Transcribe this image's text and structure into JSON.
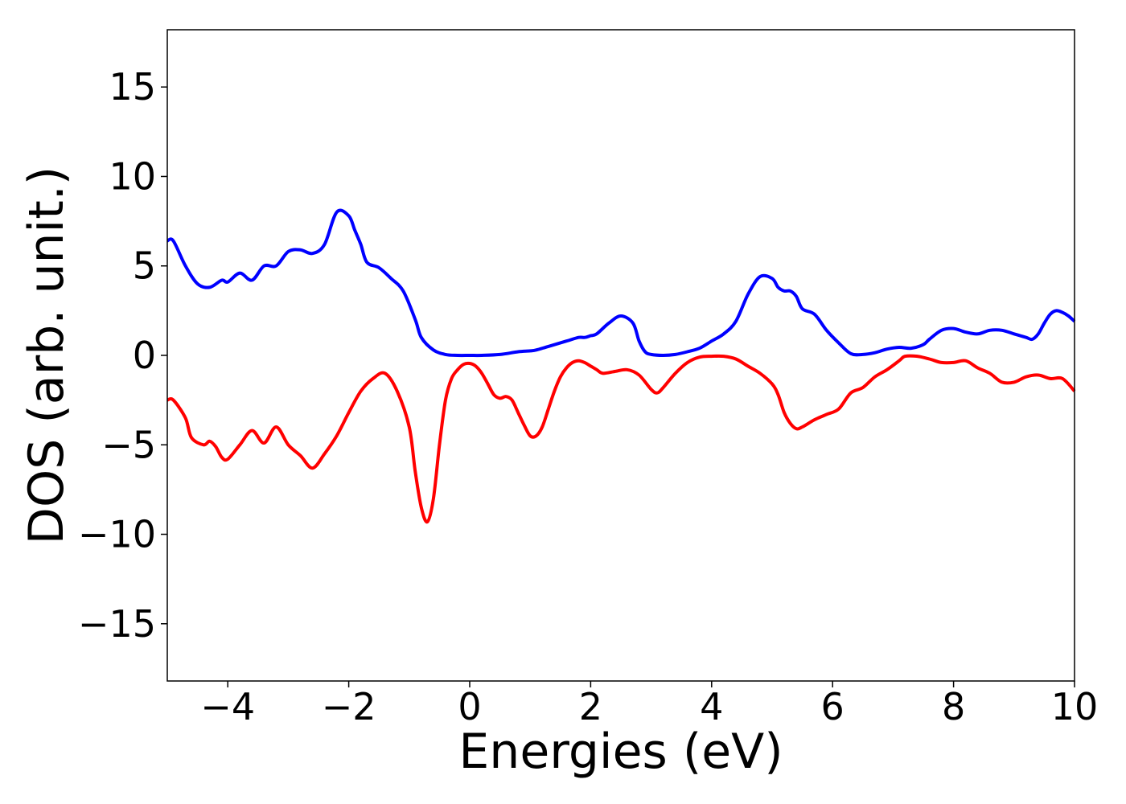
{
  "chart_data": {
    "type": "line",
    "title": "",
    "xlabel": "Energies (eV)",
    "ylabel": "DOS (arb. unit.)",
    "xlim": [
      -5,
      10
    ],
    "ylim": [
      -18.2,
      18.2
    ],
    "xticks": [
      -4,
      -2,
      0,
      2,
      4,
      6,
      8,
      10
    ],
    "xtick_labels": [
      "−4",
      "−2",
      "0",
      "2",
      "4",
      "6",
      "8",
      "10"
    ],
    "yticks": [
      15,
      10,
      5,
      0,
      -5,
      -10,
      -15
    ],
    "ytick_labels": [
      "15",
      "10",
      "5",
      "0",
      "−5",
      "−10",
      "−15"
    ],
    "grid": false,
    "legend": "none",
    "series": [
      {
        "color": "#0000ff",
        "x": [
          -5.0,
          -4.9,
          -4.7,
          -4.5,
          -4.3,
          -4.1,
          -4.0,
          -3.8,
          -3.6,
          -3.4,
          -3.2,
          -3.0,
          -2.8,
          -2.6,
          -2.4,
          -2.2,
          -2.0,
          -1.9,
          -1.8,
          -1.7,
          -1.5,
          -1.3,
          -1.1,
          -0.9,
          -0.8,
          -0.6,
          -0.4,
          -0.2,
          0.0,
          0.2,
          0.5,
          0.8,
          1.0,
          1.1,
          1.3,
          1.6,
          1.8,
          1.9,
          2.0,
          2.1,
          2.3,
          2.5,
          2.7,
          2.8,
          2.9,
          3.0,
          3.2,
          3.4,
          3.6,
          3.8,
          4.0,
          4.2,
          4.4,
          4.6,
          4.8,
          5.0,
          5.1,
          5.2,
          5.3,
          5.4,
          5.5,
          5.7,
          5.9,
          6.1,
          6.3,
          6.5,
          6.7,
          6.9,
          7.1,
          7.3,
          7.5,
          7.6,
          7.8,
          8.0,
          8.2,
          8.4,
          8.6,
          8.8,
          9.0,
          9.2,
          9.3,
          9.4,
          9.5,
          9.6,
          9.7,
          9.8,
          9.9,
          10.0
        ],
        "y": [
          6.4,
          6.4,
          5.0,
          4.0,
          3.8,
          4.2,
          4.1,
          4.6,
          4.2,
          5.0,
          5.0,
          5.8,
          5.9,
          5.7,
          6.2,
          8.0,
          7.8,
          7.0,
          6.2,
          5.2,
          4.9,
          4.3,
          3.6,
          2.0,
          1.0,
          0.3,
          0.05,
          0.0,
          0.0,
          0.0,
          0.05,
          0.2,
          0.25,
          0.3,
          0.5,
          0.8,
          1.0,
          1.0,
          1.1,
          1.2,
          1.8,
          2.2,
          1.8,
          0.8,
          0.2,
          0.05,
          0.0,
          0.05,
          0.2,
          0.4,
          0.8,
          1.2,
          1.9,
          3.4,
          4.4,
          4.3,
          3.8,
          3.6,
          3.6,
          3.3,
          2.6,
          2.3,
          1.4,
          0.7,
          0.1,
          0.05,
          0.15,
          0.35,
          0.45,
          0.4,
          0.6,
          0.9,
          1.4,
          1.5,
          1.3,
          1.2,
          1.4,
          1.4,
          1.2,
          1.0,
          0.9,
          1.2,
          1.8,
          2.3,
          2.5,
          2.4,
          2.2,
          1.9
        ]
      },
      {
        "color": "#ff0000",
        "x": [
          -5.0,
          -4.9,
          -4.7,
          -4.6,
          -4.4,
          -4.3,
          -4.2,
          -4.1,
          -4.0,
          -3.8,
          -3.6,
          -3.4,
          -3.2,
          -3.0,
          -2.8,
          -2.6,
          -2.4,
          -2.2,
          -2.0,
          -1.8,
          -1.6,
          -1.4,
          -1.2,
          -1.0,
          -0.9,
          -0.8,
          -0.7,
          -0.6,
          -0.5,
          -0.4,
          -0.3,
          -0.2,
          -0.1,
          0.0,
          0.1,
          0.2,
          0.3,
          0.4,
          0.5,
          0.6,
          0.7,
          0.8,
          0.9,
          1.0,
          1.1,
          1.2,
          1.3,
          1.4,
          1.5,
          1.6,
          1.7,
          1.8,
          1.9,
          2.0,
          2.1,
          2.2,
          2.4,
          2.6,
          2.8,
          3.0,
          3.1,
          3.2,
          3.4,
          3.6,
          3.8,
          4.0,
          4.2,
          4.4,
          4.6,
          4.8,
          5.0,
          5.1,
          5.2,
          5.3,
          5.4,
          5.5,
          5.7,
          5.9,
          6.1,
          6.3,
          6.5,
          6.7,
          6.9,
          7.1,
          7.2,
          7.4,
          7.6,
          7.8,
          8.0,
          8.2,
          8.4,
          8.6,
          8.8,
          9.0,
          9.2,
          9.4,
          9.6,
          9.8,
          10.0
        ],
        "y": [
          -2.5,
          -2.5,
          -3.5,
          -4.6,
          -5.0,
          -4.8,
          -5.1,
          -5.7,
          -5.8,
          -5.0,
          -4.2,
          -4.9,
          -4.0,
          -5.0,
          -5.6,
          -6.3,
          -5.5,
          -4.5,
          -3.2,
          -2.0,
          -1.3,
          -1.0,
          -2.0,
          -4.0,
          -6.5,
          -8.5,
          -9.3,
          -8.0,
          -5.0,
          -2.5,
          -1.3,
          -0.8,
          -0.5,
          -0.45,
          -0.6,
          -1.0,
          -1.6,
          -2.2,
          -2.4,
          -2.3,
          -2.5,
          -3.2,
          -3.9,
          -4.5,
          -4.5,
          -4.0,
          -3.0,
          -2.0,
          -1.2,
          -0.7,
          -0.4,
          -0.3,
          -0.4,
          -0.6,
          -0.8,
          -1.0,
          -0.9,
          -0.8,
          -1.1,
          -1.9,
          -2.1,
          -1.8,
          -1.0,
          -0.4,
          -0.1,
          -0.05,
          -0.05,
          -0.2,
          -0.6,
          -1.0,
          -1.6,
          -2.2,
          -3.2,
          -3.8,
          -4.1,
          -4.0,
          -3.6,
          -3.3,
          -3.0,
          -2.1,
          -1.8,
          -1.2,
          -0.8,
          -0.3,
          -0.05,
          -0.05,
          -0.2,
          -0.4,
          -0.4,
          -0.3,
          -0.7,
          -1.0,
          -1.5,
          -1.5,
          -1.2,
          -1.1,
          -1.3,
          -1.3,
          -2.0
        ]
      }
    ]
  }
}
